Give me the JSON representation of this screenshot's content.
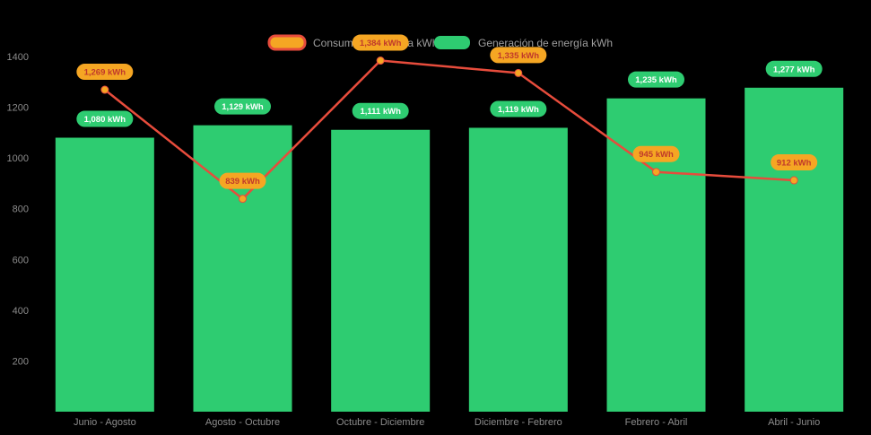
{
  "chart_data": {
    "type": "bar",
    "subtype": "combo-bar-line",
    "title": "",
    "xlabel": "",
    "ylabel": "",
    "categories": [
      "Junio - Agosto",
      "Agosto - Octubre",
      "Octubre - Diciembre",
      "Diciembre - Febrero",
      "Febrero - Abril",
      "Abril - Junio"
    ],
    "series": [
      {
        "name": "Consumo de energía kWh",
        "kind": "line",
        "color": "#e74c3c",
        "marker_color": "#f5a623",
        "badge_bg": "#f5a623",
        "badge_text_color": "#c0392b",
        "values": [
          1269,
          839,
          1384,
          1335,
          945,
          912
        ],
        "labels": [
          "1,269 kWh",
          "839 kWh",
          "1,384 kWh",
          "1,335 kWh",
          "945 kWh",
          "912 kWh"
        ]
      },
      {
        "name": "Generación de energía kWh",
        "kind": "bar",
        "color": "#2ecc71",
        "badge_bg": "#2ecc71",
        "badge_text_color": "#ffffff",
        "values": [
          1080,
          1129,
          1111,
          1119,
          1235,
          1277
        ],
        "labels": [
          "1,080 kWh",
          "1,129 kWh",
          "1,111 kWh",
          "1,119 kWh",
          "1,235 kWh",
          "1,277 kWh"
        ]
      }
    ],
    "ylim": [
      0,
      1400
    ],
    "yticks": [
      200,
      400,
      600,
      800,
      1000,
      1200,
      1400
    ],
    "grid": false,
    "legend_position": "top-center",
    "background_color": "#000000",
    "axis_text_color": "#8c8c8c",
    "legend_text_color": "#9e9e9e"
  }
}
